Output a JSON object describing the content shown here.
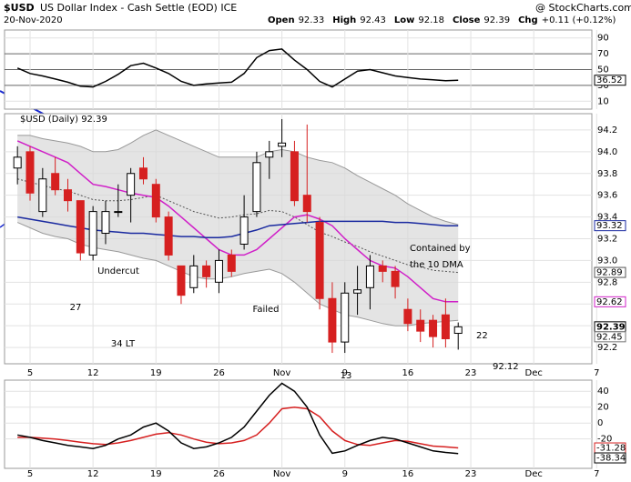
{
  "header": {
    "symbol": "$USD",
    "name": "US Dollar Index - Cash Settle (EOD) ICE",
    "source": "@ StockCharts.com",
    "date": "20-Nov-2020",
    "quote": [
      {
        "label": "Open",
        "value": 92.33
      },
      {
        "label": "High",
        "value": 92.43
      },
      {
        "label": "Low",
        "value": 92.18
      },
      {
        "label": "Close",
        "value": 92.39
      },
      {
        "label": "Chg",
        "value": "+0.11 (+0.12%)"
      }
    ]
  },
  "chart_data": [
    {
      "type": "candlestick",
      "title": "$USD (Daily) 92.39",
      "categories": [
        null,
        "5",
        null,
        null,
        null,
        null,
        "12",
        null,
        null,
        null,
        null,
        "19",
        null,
        null,
        null,
        null,
        "26",
        null,
        null,
        null,
        null,
        "Nov",
        null,
        null,
        null,
        null,
        "9",
        null,
        null,
        null,
        null,
        "16",
        null,
        null,
        null,
        null,
        "23",
        null,
        null,
        null,
        null,
        "Dec",
        null,
        null,
        null,
        null,
        "7"
      ],
      "ohlc": {
        "open": [
          93.85,
          94.0,
          93.45,
          93.8,
          93.65,
          93.55,
          93.05,
          93.25,
          93.45,
          93.6,
          93.85,
          93.7,
          93.4,
          92.95,
          92.75,
          92.95,
          92.8,
          93.05,
          93.15,
          93.45,
          93.95,
          94.05,
          94.0,
          93.6,
          93.35,
          92.65,
          92.25,
          92.7,
          92.75,
          92.95,
          92.9,
          92.55,
          92.45,
          92.45,
          92.5,
          92.33,
          null,
          null,
          null,
          null,
          null,
          null,
          null,
          null,
          null,
          null,
          null
        ],
        "high": [
          94.05,
          94.05,
          93.85,
          93.95,
          93.75,
          93.55,
          93.5,
          93.55,
          93.7,
          93.85,
          93.95,
          93.75,
          93.45,
          92.95,
          93.05,
          93.0,
          93.1,
          93.1,
          93.6,
          94.0,
          94.1,
          94.3,
          94.1,
          94.25,
          93.4,
          92.8,
          92.8,
          92.95,
          93.05,
          93.0,
          92.95,
          92.65,
          92.55,
          92.5,
          92.65,
          92.43,
          null,
          null,
          null,
          null,
          null,
          null,
          null,
          null,
          null,
          null,
          null
        ],
        "low": [
          93.7,
          93.55,
          93.4,
          93.6,
          93.45,
          93.0,
          93.0,
          93.15,
          93.4,
          93.35,
          93.7,
          93.35,
          93.0,
          92.6,
          92.7,
          92.75,
          92.7,
          92.85,
          93.1,
          93.4,
          93.75,
          93.95,
          93.5,
          93.35,
          92.55,
          92.15,
          92.15,
          92.5,
          92.55,
          92.8,
          92.65,
          92.35,
          92.25,
          92.2,
          92.2,
          92.18,
          null,
          null,
          null,
          null,
          null,
          null,
          null,
          null,
          null,
          null,
          null
        ],
        "close": [
          93.95,
          93.62,
          93.75,
          93.65,
          93.55,
          93.07,
          93.45,
          93.45,
          93.45,
          93.8,
          93.75,
          93.4,
          93.05,
          92.68,
          92.95,
          92.85,
          93.0,
          92.9,
          93.4,
          93.9,
          94.0,
          94.08,
          93.55,
          93.45,
          92.65,
          92.25,
          92.7,
          92.73,
          92.95,
          92.9,
          92.76,
          92.42,
          92.35,
          92.3,
          92.28,
          92.39,
          null,
          null,
          null,
          null,
          null,
          null,
          null,
          null,
          null,
          null,
          null
        ],
        "up_color": "#000000",
        "down_color": "#d62020"
      },
      "band": {
        "color": "#d9d9d9",
        "upper": [
          94.15,
          94.15,
          94.12,
          94.1,
          94.08,
          94.05,
          94.0,
          94.0,
          94.02,
          94.08,
          94.15,
          94.2,
          94.15,
          94.1,
          94.05,
          94.0,
          93.95,
          93.95,
          93.95,
          93.95,
          94.0,
          94.02,
          94.0,
          93.95,
          93.92,
          93.9,
          93.85,
          93.78,
          93.72,
          93.66,
          93.6,
          93.52,
          93.46,
          93.4,
          93.36,
          93.33,
          null,
          null,
          null,
          null,
          null,
          null,
          null,
          null,
          null,
          null,
          null
        ],
        "lower": [
          93.35,
          93.3,
          93.25,
          93.22,
          93.2,
          93.15,
          93.12,
          93.1,
          93.08,
          93.05,
          93.02,
          93.0,
          92.95,
          92.9,
          92.85,
          92.83,
          92.83,
          92.85,
          92.88,
          92.9,
          92.92,
          92.88,
          92.8,
          92.7,
          92.6,
          92.55,
          92.5,
          92.48,
          92.45,
          92.42,
          92.4,
          92.4,
          92.42,
          92.43,
          92.44,
          92.45,
          null,
          null,
          null,
          null,
          null,
          null,
          null,
          null,
          null,
          null,
          null
        ]
      },
      "series": [
        {
          "color": "#555555",
          "dashed": true,
          "tag": true,
          "values": [
            93.75,
            93.72,
            93.69,
            93.66,
            93.64,
            93.6,
            93.56,
            93.55,
            93.55,
            93.56,
            93.58,
            93.6,
            93.55,
            93.5,
            93.45,
            93.42,
            93.39,
            93.4,
            93.42,
            93.43,
            93.46,
            93.45,
            93.4,
            93.33,
            93.26,
            93.22,
            93.17,
            93.13,
            93.08,
            93.04,
            93.0,
            92.96,
            92.94,
            92.91,
            92.9,
            92.89,
            null,
            null,
            null,
            null,
            null,
            null,
            null,
            null,
            null,
            null,
            null
          ]
        },
        {
          "color": "#d020c8",
          "dashed": false,
          "tag": true,
          "values": [
            94.1,
            94.05,
            94.0,
            93.95,
            93.9,
            93.8,
            93.7,
            93.68,
            93.65,
            93.62,
            93.6,
            93.58,
            93.5,
            93.4,
            93.3,
            93.2,
            93.1,
            93.05,
            93.05,
            93.1,
            93.2,
            93.3,
            93.4,
            93.42,
            93.38,
            93.32,
            93.2,
            93.1,
            93.0,
            92.95,
            92.93,
            92.85,
            92.75,
            92.65,
            92.62,
            92.62,
            null,
            null,
            null,
            null,
            null,
            null,
            null,
            null,
            null,
            null,
            null
          ]
        },
        {
          "color": "#1a2aa0",
          "dashed": false,
          "tag": true,
          "values": [
            93.4,
            93.38,
            93.36,
            93.34,
            93.32,
            93.3,
            93.28,
            93.27,
            93.26,
            93.25,
            93.25,
            93.24,
            93.23,
            93.22,
            93.22,
            93.21,
            93.21,
            93.22,
            93.25,
            93.28,
            93.32,
            93.33,
            93.34,
            93.35,
            93.36,
            93.36,
            93.36,
            93.36,
            93.36,
            93.36,
            93.35,
            93.35,
            93.34,
            93.33,
            93.32,
            93.32,
            null,
            null,
            null,
            null,
            null,
            null,
            null,
            null,
            null,
            null,
            null
          ]
        }
      ],
      "ylim": [
        92.05,
        94.35
      ],
      "yticks": [
        {
          "value": 92.2,
          "label": "92.2"
        },
        {
          "value": 92.4,
          "label": "92.4"
        },
        {
          "value": 92.6,
          "label": "92.6"
        },
        {
          "value": 92.8,
          "label": "92.8"
        },
        {
          "value": 93,
          "label": "93.0"
        },
        {
          "value": 93.2,
          "label": "93.2"
        },
        {
          "value": 93.4,
          "label": "93.4"
        },
        {
          "value": 93.6,
          "label": "93.6"
        },
        {
          "value": 93.8,
          "label": "93.8"
        },
        {
          "value": 94,
          "label": "94.0"
        },
        {
          "value": 94.2,
          "label": "94.2"
        }
      ],
      "grid": true,
      "annotations": [
        "10",
        "27",
        "Undercut",
        "34 LT",
        "Failed",
        "Contained by",
        "the 10 DMA",
        "13",
        "22",
        "92.12"
      ]
    },
    {
      "type": "line",
      "series": [
        {
          "color": "#000000",
          "dashed": false,
          "tag": true,
          "values": [
            52,
            45,
            42,
            38,
            34,
            29,
            28,
            35,
            44,
            55,
            58,
            52,
            45,
            35,
            30,
            32,
            33,
            34,
            45,
            65,
            74,
            76,
            62,
            50,
            35,
            28,
            38,
            48,
            50,
            46,
            42,
            40,
            38,
            37,
            36,
            36.52,
            null,
            null,
            null,
            null,
            null,
            null,
            null,
            null,
            null,
            null,
            null
          ]
        }
      ],
      "ylim": [
        0,
        100
      ],
      "yticks": [
        10,
        30,
        50,
        70,
        90
      ],
      "grid": true
    },
    {
      "type": "line",
      "series": [
        {
          "color": "#d62020",
          "dashed": false,
          "tag": true,
          "values": [
            -18,
            -18,
            -19,
            -20,
            -22,
            -24,
            -26,
            -27,
            -25,
            -22,
            -18,
            -14,
            -12,
            -15,
            -20,
            -24,
            -26,
            -25,
            -22,
            -15,
            0,
            18,
            20,
            18,
            8,
            -10,
            -22,
            -27,
            -28,
            -25,
            -22,
            -23,
            -26,
            -29,
            -30,
            -31.28,
            null,
            null,
            null,
            null,
            null,
            null,
            null,
            null,
            null,
            null,
            null
          ]
        },
        {
          "color": "#000000",
          "dashed": false,
          "tag": true,
          "values": [
            -15,
            -18,
            -22,
            -25,
            -28,
            -30,
            -32,
            -28,
            -20,
            -15,
            -5,
            0,
            -10,
            -25,
            -32,
            -30,
            -25,
            -18,
            -5,
            15,
            35,
            50,
            40,
            20,
            -15,
            -38,
            -35,
            -28,
            -22,
            -18,
            -20,
            -25,
            -30,
            -35,
            -37,
            -38.34,
            null,
            null,
            null,
            null,
            null,
            null,
            null,
            null,
            null,
            null,
            null
          ]
        }
      ],
      "ylim": [
        -57,
        54
      ],
      "yticks": [
        -20,
        0,
        20,
        40
      ],
      "grid": true
    }
  ]
}
